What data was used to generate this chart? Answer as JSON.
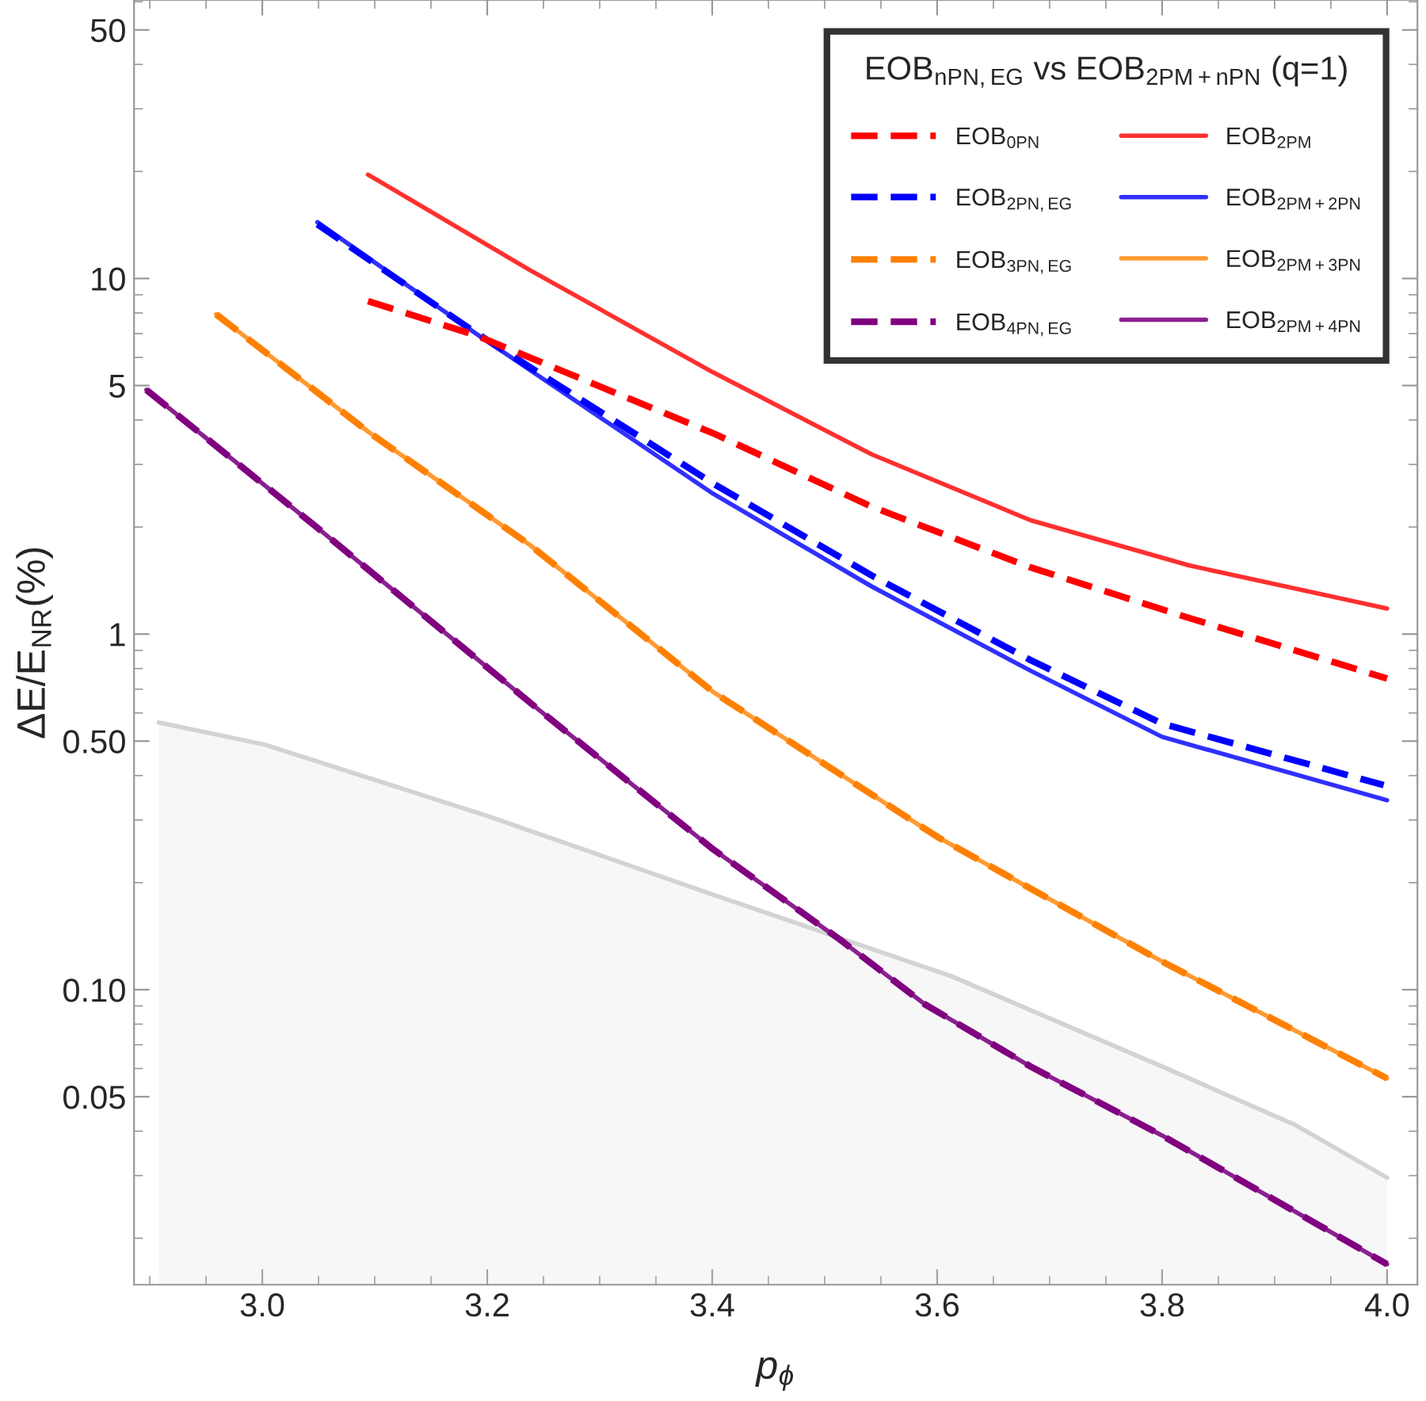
{
  "chart_data": {
    "type": "line",
    "xlabel": "p$_{ϕ}$",
    "ylabel": "ΔE/E$_{NR}$(%)",
    "legend_title": "EOB$_{nPN,EG}$ vs EOB$_{2PM+nPN}$ (q=1)",
    "log": "y",
    "grid": false,
    "legend": "top right",
    "xlim": [
      2.886,
      4.027
    ],
    "xticks": [
      {
        "value": 3.0,
        "label": "3.0"
      },
      3.2,
      3.4,
      3.6,
      3.8,
      {
        "value": 4.0,
        "label": "4.0"
      }
    ],
    "ylim": [
      0.0148,
      60.7
    ],
    "yticks": [
      0.05,
      {
        "value": 0.1,
        "label": "0.10"
      },
      {
        "value": 0.5,
        "label": "0.50"
      },
      1,
      5,
      10,
      50
    ],
    "series": [
      {
        "name": "EOB$_{0PN}$",
        "line_style": "dashed",
        "color": "#ff0000",
        "x": [
          3.094,
          3.19,
          3.401,
          3.542,
          3.683,
          3.824,
          4.0
        ],
        "values": [
          8.64,
          6.92,
          3.67,
          2.28,
          1.54,
          1.11,
          0.75
        ]
      },
      {
        "name": "EOB$_{2PN,EG}$",
        "line_style": "dashed",
        "color": "#0000ff",
        "x": [
          3.049,
          3.19,
          3.401,
          3.542,
          3.683,
          3.8,
          3.997
        ],
        "values": [
          14.2,
          7.03,
          2.65,
          1.46,
          0.845,
          0.56,
          0.376
        ]
      },
      {
        "name": "EOB$_{3PN,EG}$",
        "line_style": "dashed",
        "color": "#ff8000",
        "x": [
          2.959,
          3.096,
          3.237,
          3.401,
          3.495,
          3.601,
          3.8,
          4.0
        ],
        "values": [
          7.93,
          3.67,
          1.79,
          0.687,
          0.441,
          0.268,
          0.12,
          0.0563
        ]
      },
      {
        "name": "EOB$_{4PN,EG}$",
        "line_style": "dashed",
        "color": "#800080",
        "x": [
          2.897,
          3.049,
          3.246,
          3.401,
          3.514,
          3.589,
          3.683,
          3.8,
          4.0
        ],
        "values": [
          4.86,
          1.99,
          0.612,
          0.248,
          0.138,
          0.091,
          0.0608,
          0.0389,
          0.0169
        ]
      },
      {
        "name": "EOB$_{2PM}$",
        "line_style": "solid",
        "color": "#ff3030",
        "x": [
          3.094,
          3.237,
          3.401,
          3.542,
          3.683,
          3.824,
          4.0
        ],
        "values": [
          19.6,
          10.6,
          5.44,
          3.2,
          2.09,
          1.56,
          1.18
        ]
      },
      {
        "name": "EOB$_{2PM+2PN}$",
        "line_style": "solid",
        "color": "#3030ff",
        "x": [
          3.049,
          3.19,
          3.401,
          3.542,
          3.683,
          3.8,
          4.0
        ],
        "values": [
          14.4,
          7.0,
          2.48,
          1.36,
          0.789,
          0.514,
          0.341
        ]
      },
      {
        "name": "EOB$_{2PM+3PN}$",
        "line_style": "solid",
        "color": "#ff9a30",
        "x": [
          2.959,
          3.096,
          3.237,
          3.401,
          3.495,
          3.601,
          3.8,
          4.0
        ],
        "values": [
          7.93,
          3.67,
          1.79,
          0.687,
          0.441,
          0.268,
          0.12,
          0.0563
        ]
      },
      {
        "name": "EOB$_{2PM+4PN}$",
        "line_style": "solid",
        "color": "#8a2090",
        "x": [
          2.897,
          3.049,
          3.246,
          3.401,
          3.514,
          3.589,
          3.683,
          3.8,
          4.0
        ],
        "values": [
          4.86,
          1.99,
          0.612,
          0.248,
          0.138,
          0.091,
          0.0608,
          0.0389,
          0.0169
        ]
      },
      {
        "type": "area",
        "color": "#d3d3d3",
        "x": [
          2.908,
          3.002,
          3.2,
          3.401,
          3.613,
          3.8,
          3.918,
          4.0
        ],
        "values": [
          0.564,
          0.489,
          0.308,
          0.185,
          0.109,
          0.0608,
          0.0417,
          0.0296
        ]
      }
    ]
  }
}
